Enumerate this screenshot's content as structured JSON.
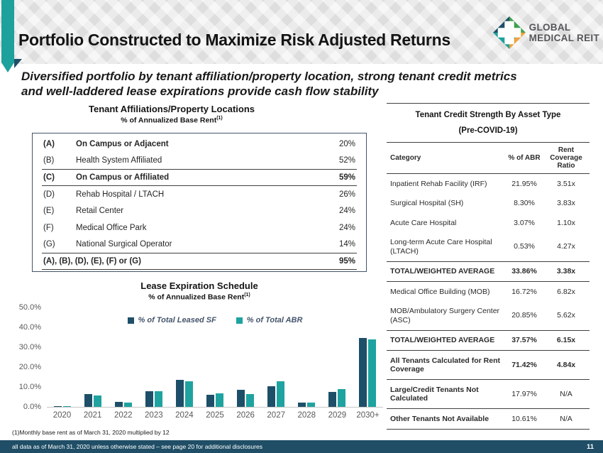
{
  "header": {
    "title": "Portfolio Constructed to Maximize Risk Adjusted Returns",
    "logo_line1": "GLOBAL",
    "logo_line2": "MEDICAL REIT"
  },
  "subtitle": {
    "line1": "Diversified portfolio by tenant affiliation/property location, strong tenant credit metrics",
    "line2": "and well-laddered lease expirations provide cash flow stability"
  },
  "affiliations": {
    "title": "Tenant Affiliations/Property Locations",
    "subtitle_text": "% of Annualized Base Rent",
    "subtitle_sup": "(1)",
    "rows": [
      {
        "key": "(A)",
        "label": "On Campus or Adjacent",
        "value": "20%",
        "bold": true,
        "value_bold": false
      },
      {
        "key": "(B)",
        "label": "Health System Affiliated",
        "value": "52%"
      },
      {
        "key": "(C)",
        "label": "On Campus or Affiliated",
        "value": "59%",
        "bold": true,
        "rule_above": true,
        "rule_below": true
      },
      {
        "key": "(D)",
        "label": "Rehab Hospital / LTACH",
        "value": "26%"
      },
      {
        "key": "(E)",
        "label": "Retail Center",
        "value": "24%"
      },
      {
        "key": "(F)",
        "label": "Medical Office Park",
        "value": "24%"
      },
      {
        "key": "(G)",
        "label": "National Surgical Operator",
        "value": "14%"
      },
      {
        "key": "",
        "label": "(A), (B), (D), (E), (F) or (G)",
        "value": "95%",
        "bold": true,
        "rule_above": true,
        "rule_below": true
      }
    ]
  },
  "credit": {
    "title": "Tenant Credit Strength By Asset Type",
    "subtitle": "(Pre-COVID-19)",
    "columns": {
      "category": "Category",
      "abr": "% of ABR",
      "ratio": "Rent Coverage Ratio"
    },
    "rows": [
      {
        "label": "Inpatient Rehab Facility (IRF)",
        "abr": "21.95%",
        "ratio": "3.51x"
      },
      {
        "label": "Surgical Hospital (SH)",
        "abr": "8.30%",
        "ratio": "3.83x"
      },
      {
        "label": "Acute Care Hospital",
        "abr": "3.07%",
        "ratio": "1.10x"
      },
      {
        "label": "Long-term Acute Care Hospital (LTACH)",
        "abr": "0.53%",
        "ratio": "4.27x"
      },
      {
        "label": "TOTAL/WEIGHTED AVERAGE",
        "abr": "33.86%",
        "ratio": "3.38x",
        "bold": true,
        "rule_above": true,
        "rule_below": true
      },
      {
        "label": "Medical Office Building (MOB)",
        "abr": "16.72%",
        "ratio": "6.82x"
      },
      {
        "label": "MOB/Ambulatory Surgery Center (ASC)",
        "abr": "20.85%",
        "ratio": "5.62x"
      },
      {
        "label": "TOTAL/WEIGHTED AVERAGE",
        "abr": "37.57%",
        "ratio": "6.15x",
        "bold": true,
        "rule_above": true,
        "rule_below": true
      },
      {
        "label": "All Tenants Calculated for Rent Coverage",
        "abr": "71.42%",
        "ratio": "4.84x",
        "bold": true,
        "rule_below": true
      },
      {
        "label": "Large/Credit Tenants Not Calculated",
        "abr": "17.97%",
        "ratio": "N/A",
        "label_bold": true,
        "rule_below": true
      },
      {
        "label": "Other Tenants Not Available",
        "abr": "10.61%",
        "ratio": "N/A",
        "label_bold": true,
        "rule_below": true
      }
    ]
  },
  "chart_data": {
    "type": "bar",
    "title": "Lease Expiration Schedule",
    "subtitle_text": "% of Annualized Base Rent",
    "subtitle_sup": "(1)",
    "categories": [
      "2020",
      "2021",
      "2022",
      "2023",
      "2024",
      "2025",
      "2026",
      "2027",
      "2028",
      "2029",
      "2030+"
    ],
    "series": [
      {
        "name": "% of Total Leased SF",
        "color": "#1D4F68",
        "values": [
          0.5,
          6.3,
          2.5,
          8.0,
          13.5,
          6.1,
          8.7,
          10.3,
          2.3,
          7.5,
          34.5
        ]
      },
      {
        "name": "% of Total ABR",
        "color": "#1FA3A0",
        "values": [
          0.5,
          5.9,
          2.2,
          8.0,
          12.9,
          6.7,
          6.5,
          12.7,
          2.3,
          8.9,
          33.8
        ]
      }
    ],
    "xlabel": "",
    "ylabel": "",
    "ylim": [
      0,
      50
    ],
    "yticks": [
      0,
      10,
      20,
      30,
      40,
      50
    ],
    "grid": false,
    "legend_position": "top-center"
  },
  "footnote": "(1)Monthly base rent as of March 31, 2020 multiplied by 12",
  "footer": {
    "text": "all data as of March 31, 2020 unless otherwise stated – see page 20 for additional disclosures",
    "page": "11"
  },
  "colors": {
    "teal": "#1FA3A0",
    "navy": "#1D4F68",
    "ribbon_teal": "#1CA19C",
    "footer_bar": "#1F4E66",
    "header_bg": "#E9E9E9",
    "logo_green": "#3FA04C",
    "logo_orange": "#F0A23C",
    "rule_dark": "#3F3F3F"
  }
}
